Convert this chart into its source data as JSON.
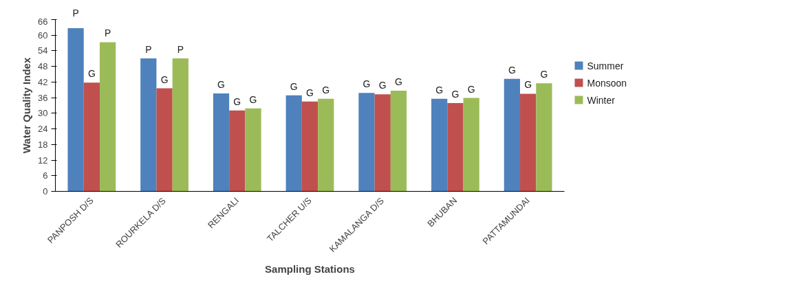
{
  "chart_data": {
    "type": "bar",
    "xlabel": "Sampling Stations",
    "ylabel": "Water Quality Index",
    "categories": [
      "PANPOSH D/S",
      "ROURKELA D/S",
      "RENGALI",
      "TALCHER U/S",
      "KAMALANGA D/S",
      "BHUBAN",
      "PATTAMUNDAI"
    ],
    "series": [
      {
        "name": "Summer",
        "color": "#4f81bd",
        "values": [
          62.7,
          51.1,
          37.6,
          36.9,
          37.8,
          35.6,
          43.2
        ],
        "value_labels": [
          "P",
          "P",
          "G",
          "G",
          "G",
          "G",
          "G"
        ]
      },
      {
        "name": "Monsoon",
        "color": "#c0504d",
        "values": [
          41.8,
          39.6,
          31.1,
          34.5,
          37.3,
          33.9,
          37.5
        ],
        "value_labels": [
          "G",
          "G",
          "G",
          "G",
          "G",
          "G",
          "G"
        ]
      },
      {
        "name": "Winter",
        "color": "#9bbb59",
        "values": [
          57.3,
          51.1,
          31.9,
          35.6,
          38.7,
          35.9,
          41.5
        ],
        "value_labels": [
          "P",
          "P",
          "G",
          "G",
          "G",
          "G",
          "G"
        ]
      }
    ],
    "ylim": [
      0,
      66
    ],
    "yticks": [
      0,
      6,
      12,
      18,
      24,
      30,
      36,
      42,
      48,
      54,
      60,
      66
    ],
    "grid": false,
    "legend": "right"
  }
}
